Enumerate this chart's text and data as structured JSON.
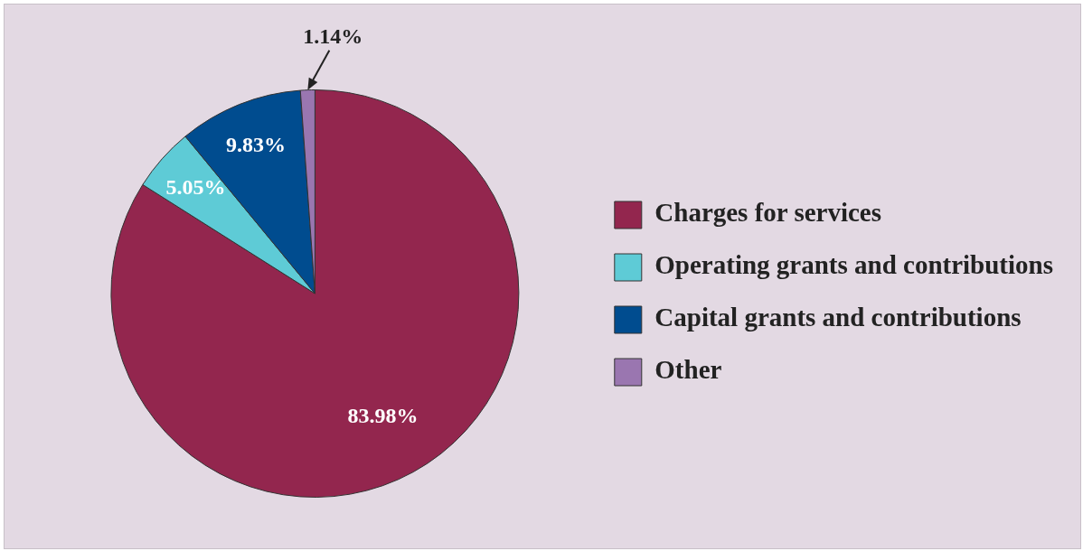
{
  "chart_data": {
    "type": "pie",
    "categories": [
      "Charges for services",
      "Operating grants and contributions",
      "Capital grants and contributions",
      "Other"
    ],
    "values": [
      83.98,
      5.05,
      9.83,
      1.14
    ],
    "colors": [
      "#93264e",
      "#5ecbd6",
      "#004c8f",
      "#9a76b0"
    ],
    "value_labels": [
      "83.98%",
      "5.05%",
      "9.83%",
      "1.14%"
    ],
    "legend": "right"
  }
}
